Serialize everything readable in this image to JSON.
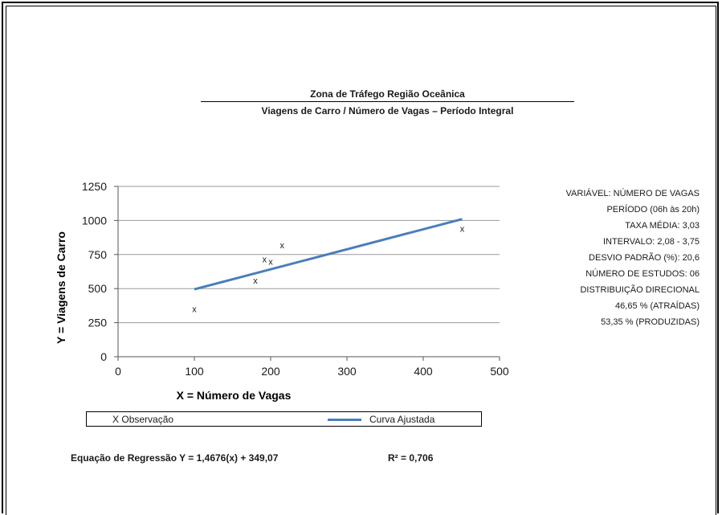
{
  "titles": {
    "line1": "Zona de Tráfego Região Oceânica",
    "line2": "Viagens de Carro / Número de Vagas – Período Integral"
  },
  "stats": [
    "VARIÁVEL: NÚMERO DE VAGAS",
    "PERÍODO (06h às 20h)",
    "TAXA MÉDIA: 3,03",
    "INTERVALO: 2,08 - 3,75",
    "DESVIO PADRÃO (%): 20,6",
    "NÚMERO DE ESTUDOS: 06",
    "DISTRIBUIÇÃO DIRECIONAL",
    "46,65 % (ATRAÍDAS)",
    "53,35 % (PRODUZIDAS)"
  ],
  "legend": {
    "observation_marker": "X",
    "observation_label": "Observação",
    "fit_label": "Curva Ajustada"
  },
  "footer": {
    "equation": "Equação de Regressão Y = 1,4676(x) + 349,07",
    "r_squared": "R² = 0,706"
  },
  "chart_data": {
    "type": "scatter",
    "xlabel": "X = Número de Vagas",
    "ylabel": "Y = Viagens de Carro",
    "xlim": [
      0,
      500
    ],
    "ylim": [
      0,
      1250
    ],
    "xticks": [
      0,
      100,
      200,
      300,
      400,
      500
    ],
    "yticks": [
      0,
      250,
      500,
      750,
      1000,
      1250
    ],
    "grid": "horizontal",
    "series": [
      {
        "name": "Observação",
        "marker": "x",
        "points": [
          {
            "x": 100,
            "y": 350
          },
          {
            "x": 180,
            "y": 560
          },
          {
            "x": 192,
            "y": 715
          },
          {
            "x": 200,
            "y": 700
          },
          {
            "x": 215,
            "y": 820
          },
          {
            "x": 451,
            "y": 940
          }
        ]
      },
      {
        "name": "Curva Ajustada",
        "type": "line",
        "color": "#4a7ebb",
        "points": [
          {
            "x": 100,
            "y": 495
          },
          {
            "x": 451,
            "y": 1010
          }
        ]
      }
    ]
  }
}
